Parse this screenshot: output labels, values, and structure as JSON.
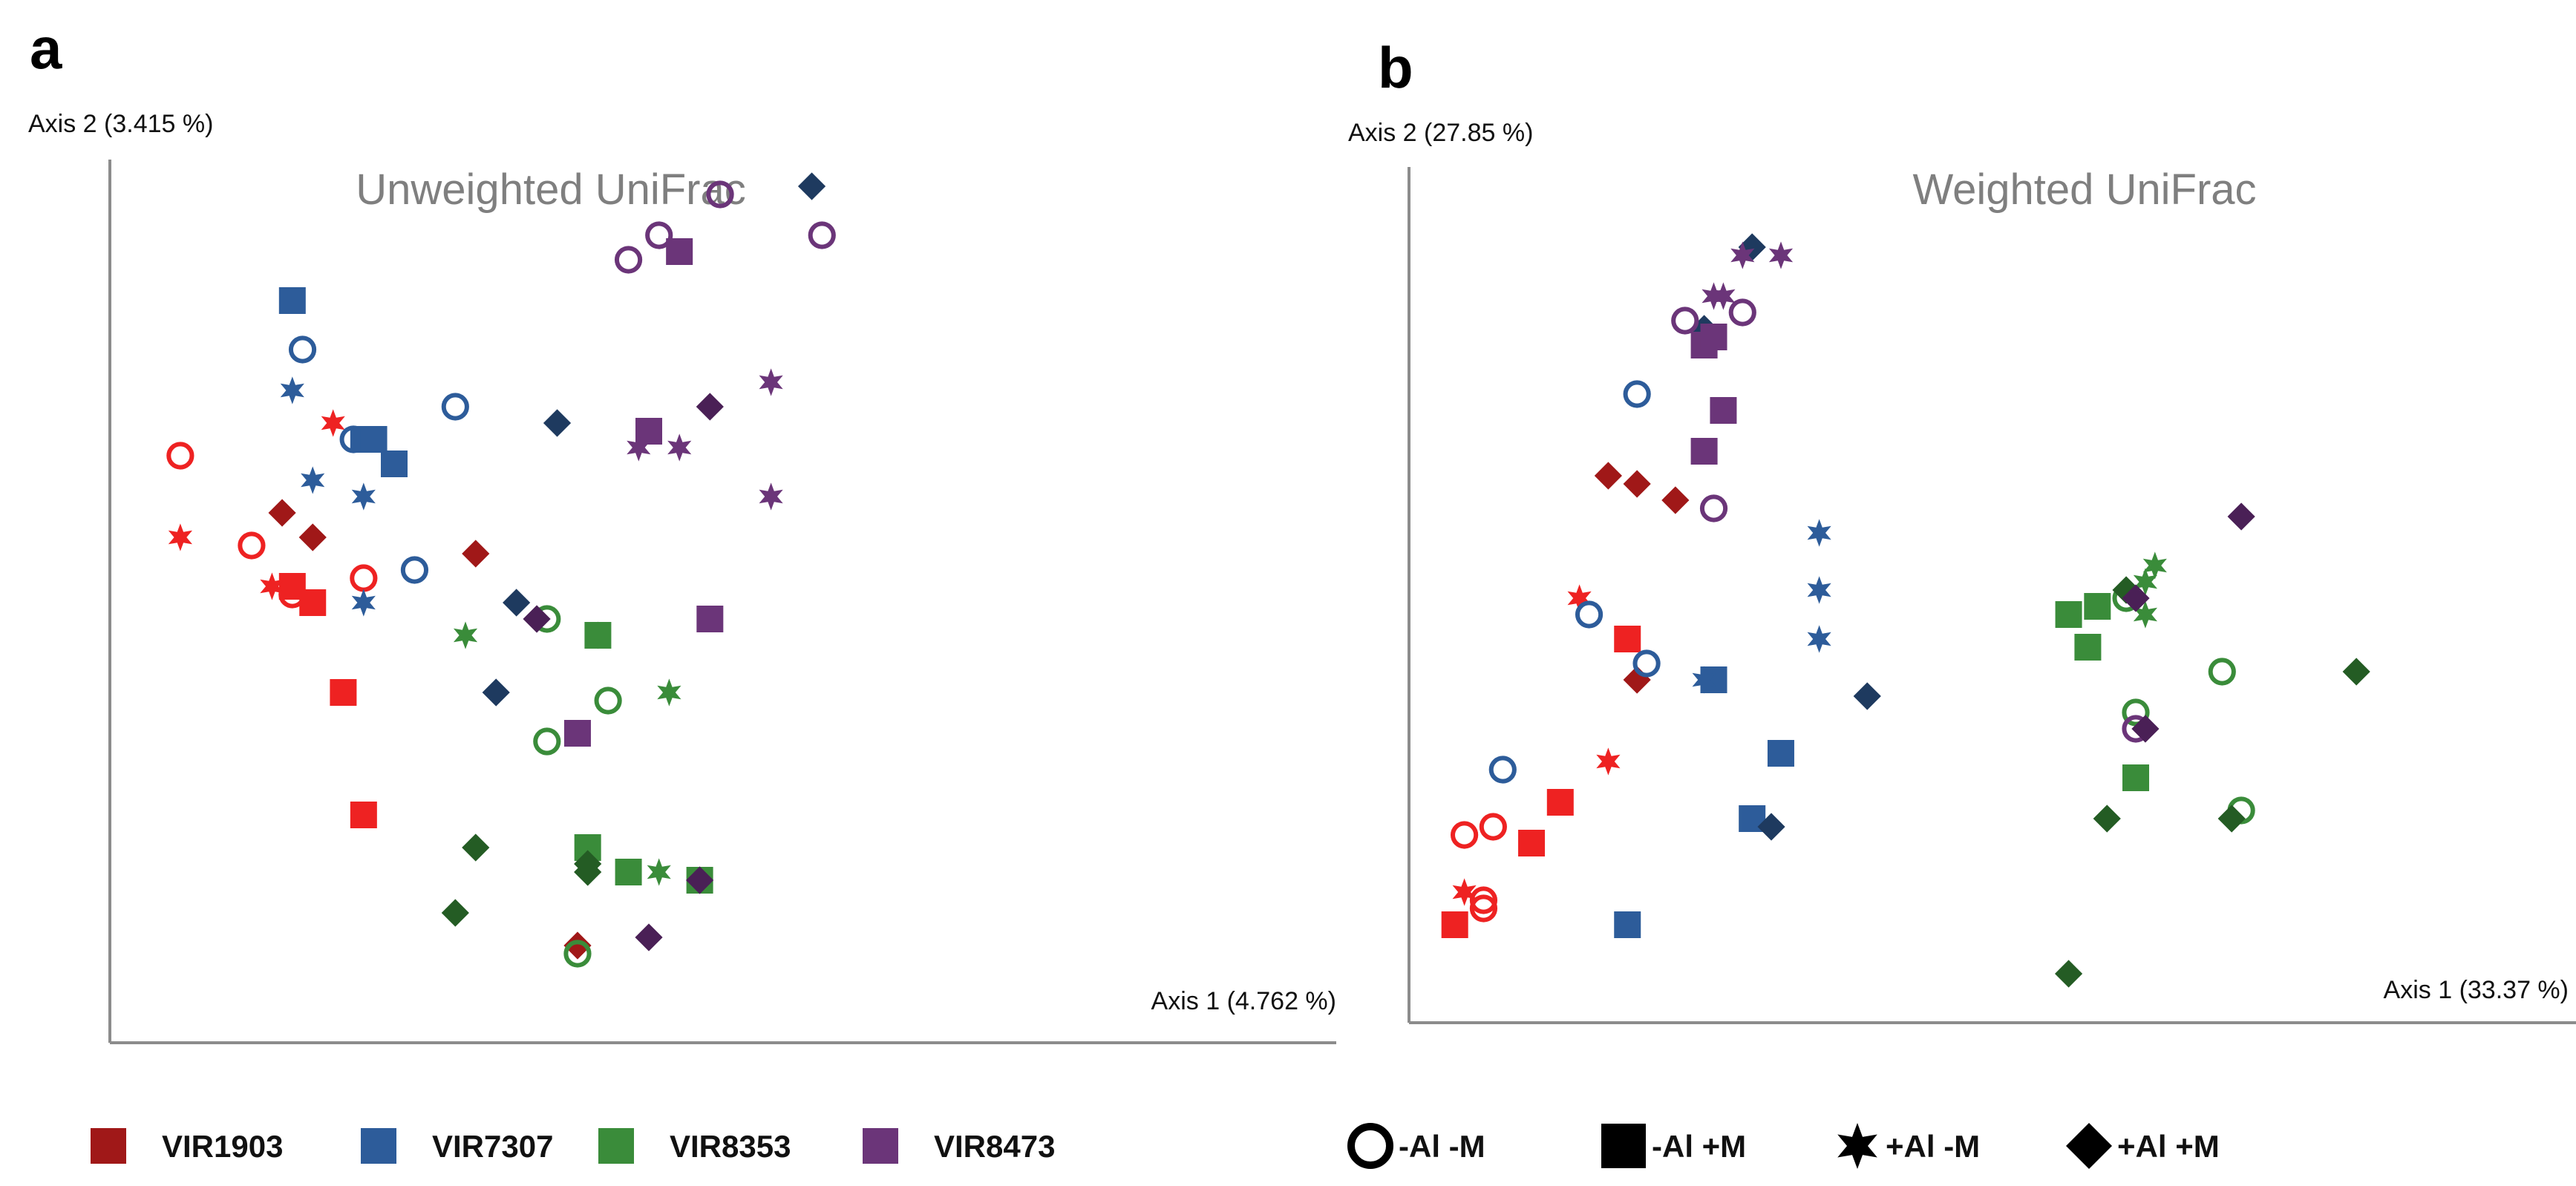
{
  "chart_data": [
    {
      "type": "scatter",
      "panel": "a",
      "title": "Unweighted UniFrac",
      "xlabel": "Axis 1 (4.762 %)",
      "ylabel": "Axis 2 (3.415 %)",
      "xlim": [
        0,
        1
      ],
      "ylim": [
        0,
        1
      ],
      "grid": false,
      "points": [
        {
          "x": 0.04,
          "y": 0.66,
          "g": "VIR1903",
          "m": "circle"
        },
        {
          "x": 0.11,
          "y": 0.55,
          "g": "VIR1903",
          "m": "circle"
        },
        {
          "x": 0.15,
          "y": 0.49,
          "g": "VIR1903",
          "m": "circle"
        },
        {
          "x": 0.22,
          "y": 0.51,
          "g": "VIR1903",
          "m": "circle"
        },
        {
          "x": 0.15,
          "y": 0.5,
          "g": "VIR1903",
          "m": "square"
        },
        {
          "x": 0.17,
          "y": 0.48,
          "g": "VIR1903",
          "m": "square"
        },
        {
          "x": 0.2,
          "y": 0.37,
          "g": "VIR1903",
          "m": "square"
        },
        {
          "x": 0.22,
          "y": 0.22,
          "g": "VIR1903",
          "m": "square"
        },
        {
          "x": 0.04,
          "y": 0.56,
          "g": "VIR1903",
          "m": "star"
        },
        {
          "x": 0.19,
          "y": 0.7,
          "g": "VIR1903",
          "m": "star"
        },
        {
          "x": 0.13,
          "y": 0.5,
          "g": "VIR1903",
          "m": "star"
        },
        {
          "x": 0.14,
          "y": 0.59,
          "g": "VIR1903",
          "m": "diamond"
        },
        {
          "x": 0.17,
          "y": 0.56,
          "g": "VIR1903",
          "m": "diamond"
        },
        {
          "x": 0.33,
          "y": 0.54,
          "g": "VIR1903",
          "m": "diamond"
        },
        {
          "x": 0.43,
          "y": 0.06,
          "g": "VIR1903",
          "m": "diamond"
        },
        {
          "x": 0.16,
          "y": 0.79,
          "g": "VIR7307",
          "m": "circle"
        },
        {
          "x": 0.21,
          "y": 0.68,
          "g": "VIR7307",
          "m": "circle"
        },
        {
          "x": 0.27,
          "y": 0.52,
          "g": "VIR7307",
          "m": "circle"
        },
        {
          "x": 0.31,
          "y": 0.72,
          "g": "VIR7307",
          "m": "circle"
        },
        {
          "x": 0.15,
          "y": 0.85,
          "g": "VIR7307",
          "m": "square"
        },
        {
          "x": 0.22,
          "y": 0.68,
          "g": "VIR7307",
          "m": "square"
        },
        {
          "x": 0.23,
          "y": 0.68,
          "g": "VIR7307",
          "m": "square"
        },
        {
          "x": 0.25,
          "y": 0.65,
          "g": "VIR7307",
          "m": "square"
        },
        {
          "x": 0.15,
          "y": 0.74,
          "g": "VIR7307",
          "m": "star"
        },
        {
          "x": 0.17,
          "y": 0.63,
          "g": "VIR7307",
          "m": "star"
        },
        {
          "x": 0.22,
          "y": 0.61,
          "g": "VIR7307",
          "m": "star"
        },
        {
          "x": 0.22,
          "y": 0.48,
          "g": "VIR7307",
          "m": "star"
        },
        {
          "x": 0.41,
          "y": 0.7,
          "g": "VIR7307",
          "m": "diamond"
        },
        {
          "x": 0.37,
          "y": 0.48,
          "g": "VIR7307",
          "m": "diamond"
        },
        {
          "x": 0.35,
          "y": 0.37,
          "g": "VIR7307",
          "m": "diamond"
        },
        {
          "x": 0.66,
          "y": 0.99,
          "g": "VIR7307",
          "m": "diamond"
        },
        {
          "x": 0.4,
          "y": 0.46,
          "g": "VIR8353",
          "m": "circle"
        },
        {
          "x": 0.46,
          "y": 0.36,
          "g": "VIR8353",
          "m": "circle"
        },
        {
          "x": 0.4,
          "y": 0.31,
          "g": "VIR8353",
          "m": "circle"
        },
        {
          "x": 0.43,
          "y": 0.05,
          "g": "VIR8353",
          "m": "circle"
        },
        {
          "x": 0.45,
          "y": 0.44,
          "g": "VIR8353",
          "m": "square"
        },
        {
          "x": 0.44,
          "y": 0.18,
          "g": "VIR8353",
          "m": "square"
        },
        {
          "x": 0.48,
          "y": 0.15,
          "g": "VIR8353",
          "m": "square"
        },
        {
          "x": 0.55,
          "y": 0.14,
          "g": "VIR8353",
          "m": "square"
        },
        {
          "x": 0.32,
          "y": 0.44,
          "g": "VIR8353",
          "m": "star"
        },
        {
          "x": 0.52,
          "y": 0.37,
          "g": "VIR8353",
          "m": "star"
        },
        {
          "x": 0.51,
          "y": 0.15,
          "g": "VIR8353",
          "m": "star"
        },
        {
          "x": 0.45,
          "y": 0.44,
          "g": "VIR8353",
          "m": "star"
        },
        {
          "x": 0.33,
          "y": 0.18,
          "g": "VIR8353",
          "m": "diamond"
        },
        {
          "x": 0.31,
          "y": 0.1,
          "g": "VIR8353",
          "m": "diamond"
        },
        {
          "x": 0.44,
          "y": 0.16,
          "g": "VIR8353",
          "m": "diamond"
        },
        {
          "x": 0.44,
          "y": 0.15,
          "g": "VIR8353",
          "m": "diamond"
        },
        {
          "x": 0.57,
          "y": 0.98,
          "g": "VIR8473",
          "m": "circle"
        },
        {
          "x": 0.51,
          "y": 0.93,
          "g": "VIR8473",
          "m": "circle"
        },
        {
          "x": 0.48,
          "y": 0.9,
          "g": "VIR8473",
          "m": "circle"
        },
        {
          "x": 0.67,
          "y": 0.93,
          "g": "VIR8473",
          "m": "circle"
        },
        {
          "x": 0.53,
          "y": 0.91,
          "g": "VIR8473",
          "m": "square"
        },
        {
          "x": 0.5,
          "y": 0.69,
          "g": "VIR8473",
          "m": "square"
        },
        {
          "x": 0.56,
          "y": 0.46,
          "g": "VIR8473",
          "m": "square"
        },
        {
          "x": 0.43,
          "y": 0.32,
          "g": "VIR8473",
          "m": "square"
        },
        {
          "x": 0.49,
          "y": 0.67,
          "g": "VIR8473",
          "m": "star"
        },
        {
          "x": 0.53,
          "y": 0.67,
          "g": "VIR8473",
          "m": "star"
        },
        {
          "x": 0.62,
          "y": 0.75,
          "g": "VIR8473",
          "m": "star"
        },
        {
          "x": 0.62,
          "y": 0.61,
          "g": "VIR8473",
          "m": "star"
        },
        {
          "x": 0.56,
          "y": 0.72,
          "g": "VIR8473",
          "m": "diamond"
        },
        {
          "x": 0.39,
          "y": 0.46,
          "g": "VIR8473",
          "m": "diamond"
        },
        {
          "x": 0.5,
          "y": 0.07,
          "g": "VIR8473",
          "m": "diamond"
        },
        {
          "x": 0.55,
          "y": 0.14,
          "g": "VIR8473",
          "m": "diamond"
        }
      ]
    },
    {
      "type": "scatter",
      "panel": "b",
      "title": "Weighted UniFrac",
      "xlabel": "Axis 1 (33.37 %)",
      "ylabel": "Axis 2 (27.85 %)",
      "xlim": [
        0,
        1
      ],
      "ylim": [
        0,
        1
      ],
      "grid": false,
      "points": [
        {
          "x": 0.05,
          "y": 0.2,
          "g": "VIR1903",
          "m": "circle"
        },
        {
          "x": 0.08,
          "y": 0.21,
          "g": "VIR1903",
          "m": "circle"
        },
        {
          "x": 0.07,
          "y": 0.12,
          "g": "VIR1903",
          "m": "circle"
        },
        {
          "x": 0.07,
          "y": 0.11,
          "g": "VIR1903",
          "m": "circle"
        },
        {
          "x": 0.04,
          "y": 0.09,
          "g": "VIR1903",
          "m": "square"
        },
        {
          "x": 0.12,
          "y": 0.19,
          "g": "VIR1903",
          "m": "square"
        },
        {
          "x": 0.15,
          "y": 0.24,
          "g": "VIR1903",
          "m": "square"
        },
        {
          "x": 0.22,
          "y": 0.44,
          "g": "VIR1903",
          "m": "square"
        },
        {
          "x": 0.17,
          "y": 0.49,
          "g": "VIR1903",
          "m": "star"
        },
        {
          "x": 0.2,
          "y": 0.29,
          "g": "VIR1903",
          "m": "star"
        },
        {
          "x": 0.05,
          "y": 0.13,
          "g": "VIR1903",
          "m": "star"
        },
        {
          "x": 0.2,
          "y": 0.64,
          "g": "VIR1903",
          "m": "diamond"
        },
        {
          "x": 0.23,
          "y": 0.63,
          "g": "VIR1903",
          "m": "diamond"
        },
        {
          "x": 0.27,
          "y": 0.61,
          "g": "VIR1903",
          "m": "diamond"
        },
        {
          "x": 0.23,
          "y": 0.39,
          "g": "VIR1903",
          "m": "diamond"
        },
        {
          "x": 0.23,
          "y": 0.74,
          "g": "VIR7307",
          "m": "circle"
        },
        {
          "x": 0.18,
          "y": 0.47,
          "g": "VIR7307",
          "m": "circle"
        },
        {
          "x": 0.24,
          "y": 0.41,
          "g": "VIR7307",
          "m": "circle"
        },
        {
          "x": 0.09,
          "y": 0.28,
          "g": "VIR7307",
          "m": "circle"
        },
        {
          "x": 0.31,
          "y": 0.39,
          "g": "VIR7307",
          "m": "square"
        },
        {
          "x": 0.38,
          "y": 0.3,
          "g": "VIR7307",
          "m": "square"
        },
        {
          "x": 0.35,
          "y": 0.22,
          "g": "VIR7307",
          "m": "square"
        },
        {
          "x": 0.22,
          "y": 0.09,
          "g": "VIR7307",
          "m": "square"
        },
        {
          "x": 0.42,
          "y": 0.57,
          "g": "VIR7307",
          "m": "star"
        },
        {
          "x": 0.42,
          "y": 0.5,
          "g": "VIR7307",
          "m": "star"
        },
        {
          "x": 0.42,
          "y": 0.44,
          "g": "VIR7307",
          "m": "star"
        },
        {
          "x": 0.3,
          "y": 0.39,
          "g": "VIR7307",
          "m": "star"
        },
        {
          "x": 0.35,
          "y": 0.92,
          "g": "VIR7307",
          "m": "diamond"
        },
        {
          "x": 0.3,
          "y": 0.82,
          "g": "VIR7307",
          "m": "diamond"
        },
        {
          "x": 0.47,
          "y": 0.37,
          "g": "VIR7307",
          "m": "diamond"
        },
        {
          "x": 0.37,
          "y": 0.21,
          "g": "VIR7307",
          "m": "diamond"
        },
        {
          "x": 0.74,
          "y": 0.49,
          "g": "VIR8353",
          "m": "circle"
        },
        {
          "x": 0.84,
          "y": 0.4,
          "g": "VIR8353",
          "m": "circle"
        },
        {
          "x": 0.75,
          "y": 0.35,
          "g": "VIR8353",
          "m": "circle"
        },
        {
          "x": 0.86,
          "y": 0.23,
          "g": "VIR8353",
          "m": "circle"
        },
        {
          "x": 0.68,
          "y": 0.47,
          "g": "VIR8353",
          "m": "square"
        },
        {
          "x": 0.71,
          "y": 0.48,
          "g": "VIR8353",
          "m": "square"
        },
        {
          "x": 0.7,
          "y": 0.43,
          "g": "VIR8353",
          "m": "square"
        },
        {
          "x": 0.75,
          "y": 0.27,
          "g": "VIR8353",
          "m": "square"
        },
        {
          "x": 0.77,
          "y": 0.53,
          "g": "VIR8353",
          "m": "star"
        },
        {
          "x": 0.76,
          "y": 0.51,
          "g": "VIR8353",
          "m": "star"
        },
        {
          "x": 0.76,
          "y": 0.47,
          "g": "VIR8353",
          "m": "star"
        },
        {
          "x": 0.74,
          "y": 0.5,
          "g": "VIR8353",
          "m": "diamond"
        },
        {
          "x": 0.98,
          "y": 0.4,
          "g": "VIR8353",
          "m": "diamond"
        },
        {
          "x": 0.72,
          "y": 0.22,
          "g": "VIR8353",
          "m": "diamond"
        },
        {
          "x": 0.85,
          "y": 0.22,
          "g": "VIR8353",
          "m": "diamond"
        },
        {
          "x": 0.68,
          "y": 0.03,
          "g": "VIR8353",
          "m": "diamond"
        },
        {
          "x": 0.28,
          "y": 0.83,
          "g": "VIR8473",
          "m": "circle"
        },
        {
          "x": 0.34,
          "y": 0.84,
          "g": "VIR8473",
          "m": "circle"
        },
        {
          "x": 0.31,
          "y": 0.6,
          "g": "VIR8473",
          "m": "circle"
        },
        {
          "x": 0.75,
          "y": 0.33,
          "g": "VIR8473",
          "m": "circle"
        },
        {
          "x": 0.3,
          "y": 0.8,
          "g": "VIR8473",
          "m": "square"
        },
        {
          "x": 0.31,
          "y": 0.81,
          "g": "VIR8473",
          "m": "square"
        },
        {
          "x": 0.32,
          "y": 0.72,
          "g": "VIR8473",
          "m": "square"
        },
        {
          "x": 0.3,
          "y": 0.67,
          "g": "VIR8473",
          "m": "square"
        },
        {
          "x": 0.34,
          "y": 0.91,
          "g": "VIR8473",
          "m": "star"
        },
        {
          "x": 0.38,
          "y": 0.91,
          "g": "VIR8473",
          "m": "star"
        },
        {
          "x": 0.31,
          "y": 0.86,
          "g": "VIR8473",
          "m": "star"
        },
        {
          "x": 0.32,
          "y": 0.86,
          "g": "VIR8473",
          "m": "star"
        },
        {
          "x": 0.86,
          "y": 0.59,
          "g": "VIR8473",
          "m": "diamond"
        },
        {
          "x": 0.75,
          "y": 0.49,
          "g": "VIR8473",
          "m": "diamond"
        },
        {
          "x": 0.76,
          "y": 0.33,
          "g": "VIR8473",
          "m": "diamond"
        }
      ]
    }
  ],
  "colors": {
    "VIR1903": "#a01818",
    "VIR1903_light": "#ee2222",
    "VIR7307": "#2d5c9a",
    "VIR7307_dark": "#1e3a5f",
    "VIR8353": "#3a8c3a",
    "VIR8353_dark": "#245c24",
    "VIR8473": "#6b3579",
    "VIR8473_dark": "#4a2056"
  },
  "legend_groups": [
    {
      "label": "VIR1903",
      "color": "#a01818"
    },
    {
      "label": "VIR7307",
      "color": "#2d5c9a"
    },
    {
      "label": "VIR8353",
      "color": "#3a8c3a"
    },
    {
      "label": "VIR8473",
      "color": "#6b3579"
    }
  ],
  "legend_markers": [
    {
      "label": "-Al -M",
      "marker": "circle"
    },
    {
      "label": "-Al +M",
      "marker": "square"
    },
    {
      "label": "+Al -M",
      "marker": "star"
    },
    {
      "label": "+Al +M",
      "marker": "diamond"
    }
  ]
}
